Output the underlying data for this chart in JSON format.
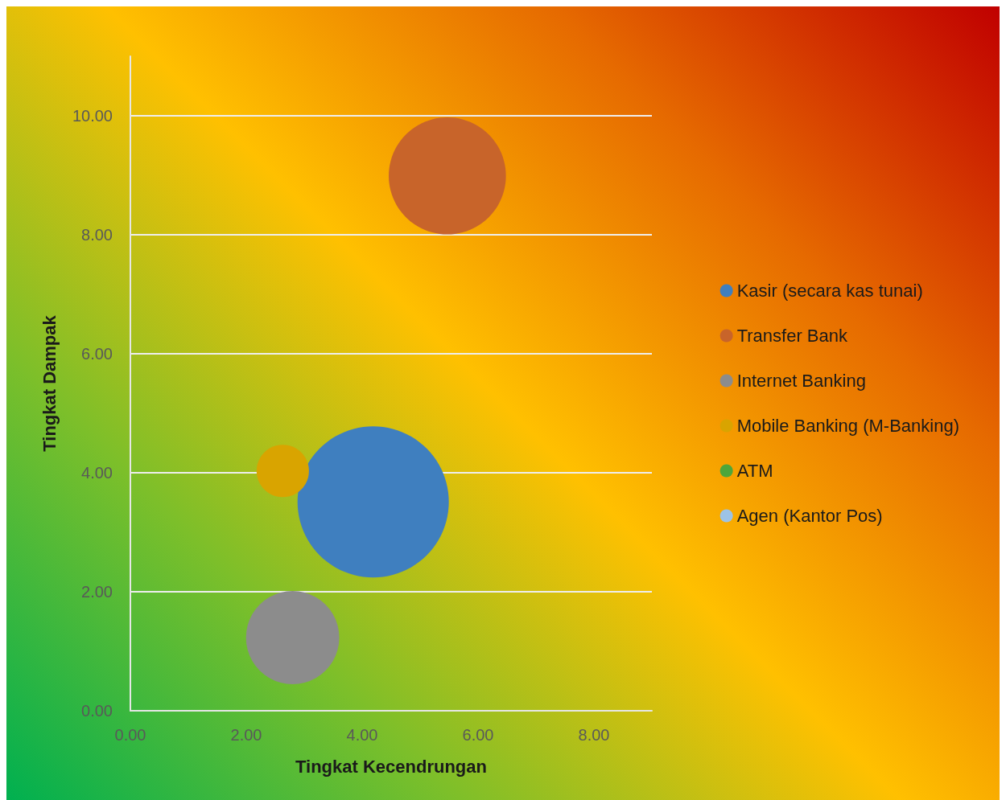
{
  "chart_data": {
    "type": "bubble",
    "xlabel": "Tingkat Kecendrungan",
    "ylabel": "Tingkat Dampak",
    "xlim": [
      0,
      9
    ],
    "xticks": [
      {
        "value": 0,
        "label": "0.00"
      },
      {
        "value": 2,
        "label": "2.00"
      },
      {
        "value": 4,
        "label": "4.00"
      },
      {
        "value": 6,
        "label": "6.00"
      },
      {
        "value": 8,
        "label": "8.00"
      }
    ],
    "ylim": [
      0,
      11
    ],
    "yticks": [
      {
        "value": 0,
        "label": "0.00"
      },
      {
        "value": 2,
        "label": "2.00"
      },
      {
        "value": 4,
        "label": "4.00"
      },
      {
        "value": 6,
        "label": "6.00"
      },
      {
        "value": 8,
        "label": "8.00"
      },
      {
        "value": 10,
        "label": "10.00"
      }
    ],
    "grid": "y",
    "legend": "right",
    "marker": "circle",
    "series": [
      {
        "name": "Kasir (secara kas tunai)",
        "color": "#3f7fbf",
        "x": [
          4.19
        ],
        "values": [
          3.51
        ],
        "sizes": [
          1
        ]
      },
      {
        "name": "Transfer Bank",
        "color": "#c8642a",
        "x": [
          5.47
        ],
        "values": [
          8.99
        ],
        "sizes": [
          0.6
        ]
      },
      {
        "name": "Internet Banking",
        "color": "#8c8c8c",
        "x": [
          2.8
        ],
        "values": [
          1.23
        ],
        "sizes": [
          0.38
        ]
      },
      {
        "name": "Mobile Banking (M-Banking)",
        "color": "#d9a400",
        "x": [
          2.63
        ],
        "values": [
          4.03
        ],
        "sizes": [
          0.12
        ]
      },
      {
        "name": "ATM",
        "color": "#4ea63a"
      },
      {
        "name": "Agen (Kantor Pos)",
        "color": "#9dc3e6"
      }
    ]
  }
}
